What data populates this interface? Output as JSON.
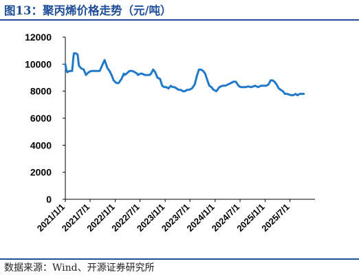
{
  "header": {
    "title": "图13：聚丙烯价格走势（元/吨）"
  },
  "footer": {
    "source": "数据来源：Wind、开源证券研究所"
  },
  "colors": {
    "title": "#1f4e9a",
    "series_line": "#1f78c8",
    "axis": "#000000"
  },
  "chart_data": {
    "type": "line",
    "title": "聚丙烯价格走势（元/吨）",
    "xlabel": "",
    "ylabel": "",
    "ylim": [
      0,
      12000
    ],
    "yticks": [
      0,
      2000,
      4000,
      6000,
      8000,
      10000,
      12000
    ],
    "ytick_labels": [
      "0",
      "2000",
      "4000",
      "6000",
      "8000",
      "10000",
      "12000"
    ],
    "xlim": [
      "2021-01-01",
      "2025-12-31"
    ],
    "xticks": [
      "2021-01-01",
      "2021-07-01",
      "2022-01-01",
      "2022-07-01",
      "2023-01-01",
      "2023-07-01",
      "2024-01-01",
      "2024-07-01",
      "2025-01-01",
      "2025-07-01"
    ],
    "xtick_labels": [
      "2021/1/1",
      "2021/7/1",
      "2022/1/1",
      "2022/7/1",
      "2023/1/1",
      "2023/7/1",
      "2024/1/1",
      "2024/7/1",
      "2025/1/1",
      "2025/7/1"
    ],
    "grid": false,
    "legend": "none",
    "series": [
      {
        "x": [
          "2021-01-01",
          "2021-01-08",
          "2021-01-15",
          "2021-02-01",
          "2021-02-20",
          "2021-03-01",
          "2021-03-05",
          "2021-03-20",
          "2021-04-01",
          "2021-04-10",
          "2021-04-25",
          "2021-05-15",
          "2021-06-01",
          "2021-06-20",
          "2021-07-10",
          "2021-08-10",
          "2021-09-10",
          "2021-10-10",
          "2021-10-15",
          "2021-10-25",
          "2021-11-05",
          "2021-11-20",
          "2021-12-05",
          "2021-12-20",
          "2022-01-10",
          "2022-01-25",
          "2022-02-15",
          "2022-03-05",
          "2022-03-10",
          "2022-03-25",
          "2022-04-15",
          "2022-05-05",
          "2022-05-25",
          "2022-06-10",
          "2022-06-15",
          "2022-07-05",
          "2022-07-15",
          "2022-08-05",
          "2022-08-25",
          "2022-09-10",
          "2022-09-20",
          "2022-10-05",
          "2022-10-20",
          "2022-11-05",
          "2022-11-25",
          "2022-12-10",
          "2022-12-25",
          "2023-01-10",
          "2023-01-25",
          "2023-02-10",
          "2023-02-25",
          "2023-03-10",
          "2023-03-25",
          "2023-04-10",
          "2023-04-25",
          "2023-05-10",
          "2023-05-25",
          "2023-06-10",
          "2023-06-25",
          "2023-07-15",
          "2023-08-05",
          "2023-08-20",
          "2023-09-05",
          "2023-09-20",
          "2023-10-05",
          "2023-10-20",
          "2023-11-05",
          "2023-11-20",
          "2023-12-05",
          "2023-12-20",
          "2024-01-10",
          "2024-02-01",
          "2024-02-25",
          "2024-03-15",
          "2024-04-05",
          "2024-04-25",
          "2024-05-15",
          "2024-06-01",
          "2024-06-20",
          "2024-07-05",
          "2024-07-20",
          "2024-08-10",
          "2024-08-30",
          "2024-09-20",
          "2024-10-05",
          "2024-10-20",
          "2024-11-10",
          "2024-12-01",
          "2024-12-20",
          "2025-01-10",
          "2025-01-25",
          "2025-02-10",
          "2025-02-25",
          "2025-03-10",
          "2025-03-25",
          "2025-04-10",
          "2025-04-25",
          "2025-05-10",
          "2025-05-25",
          "2025-06-10",
          "2025-06-25",
          "2025-07-10",
          "2025-07-25",
          "2025-08-10",
          "2025-08-25",
          "2025-09-10",
          "2025-09-25",
          "2025-10-10"
        ],
        "values": [
          10000,
          9600,
          9400,
          9500,
          9500,
          10500,
          10800,
          10800,
          10700,
          9900,
          9700,
          9600,
          9200,
          9400,
          9500,
          9500,
          9500,
          10200,
          10300,
          10000,
          9700,
          9500,
          9200,
          8800,
          8600,
          8600,
          8900,
          9300,
          9200,
          9300,
          9500,
          9500,
          9400,
          9300,
          9200,
          9300,
          9300,
          9200,
          9200,
          9200,
          9300,
          9600,
          9400,
          9000,
          8900,
          8400,
          8300,
          8300,
          8200,
          8400,
          8300,
          8300,
          8200,
          8100,
          8100,
          8000,
          8000,
          8100,
          8100,
          8200,
          8500,
          9100,
          9600,
          9600,
          9500,
          9300,
          8800,
          8400,
          8300,
          8100,
          8000,
          8300,
          8400,
          8400,
          8500,
          8600,
          8700,
          8700,
          8400,
          8300,
          8300,
          8300,
          8350,
          8300,
          8350,
          8400,
          8300,
          8400,
          8400,
          8400,
          8500,
          8800,
          8800,
          8700,
          8500,
          8200,
          8100,
          8000,
          7800,
          7800,
          7750,
          7700,
          7700,
          7800,
          7700,
          7800,
          7800,
          7800
        ]
      }
    ]
  }
}
